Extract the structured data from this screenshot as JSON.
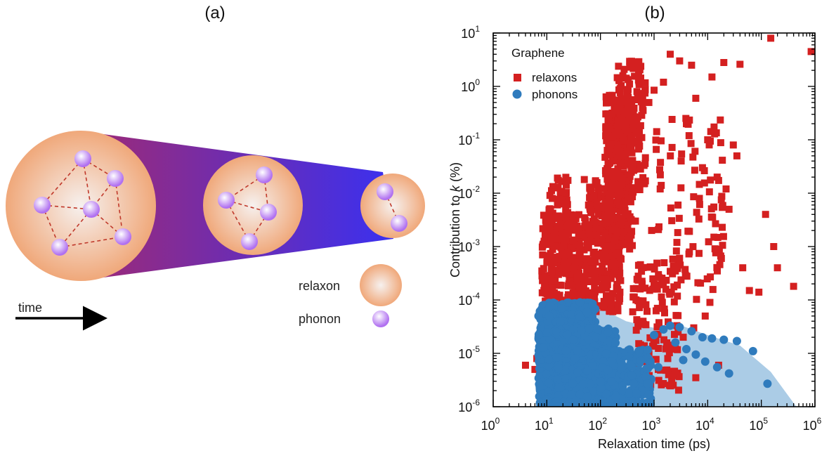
{
  "panels": {
    "a": {
      "label": "(a)"
    },
    "b": {
      "label": "(b)"
    }
  },
  "diagram": {
    "legend": {
      "relaxon_label": "relaxon",
      "phonon_label": "phonon"
    },
    "time_label": "time",
    "colors": {
      "relaxon_outer": "#f0a87a",
      "relaxon_inner": "#f6f1ef",
      "phonon": "#b070f0",
      "link": "#c0392b",
      "cone_left": "#9a2a7a",
      "cone_right": "#3a30f0"
    }
  },
  "chart_data": {
    "type": "scatter",
    "title": "",
    "xlabel": "Relaxation time (ps)",
    "ylabel_main": "Contribution to ",
    "ylabel_var": "k",
    "ylabel_unit": " (%)",
    "xscale": "log",
    "yscale": "log",
    "xlim": [
      1,
      1000000
    ],
    "ylim": [
      1e-06,
      10
    ],
    "x_ticks": [
      {
        "base": "10",
        "exp": "0"
      },
      {
        "base": "10",
        "exp": "1"
      },
      {
        "base": "10",
        "exp": "2"
      },
      {
        "base": "10",
        "exp": "3"
      },
      {
        "base": "10",
        "exp": "4"
      },
      {
        "base": "10",
        "exp": "5"
      },
      {
        "base": "10",
        "exp": "6"
      }
    ],
    "y_ticks": [
      {
        "base": "10",
        "exp": "-6"
      },
      {
        "base": "10",
        "exp": "-5"
      },
      {
        "base": "10",
        "exp": "-4"
      },
      {
        "base": "10",
        "exp": "-3"
      },
      {
        "base": "10",
        "exp": "-2"
      },
      {
        "base": "10",
        "exp": "-1"
      },
      {
        "base": "10",
        "exp": "0"
      },
      {
        "base": "10",
        "exp": "1"
      }
    ],
    "legend_title": "Graphene",
    "legend_position": "top-left",
    "series": [
      {
        "name": "relaxons",
        "marker": "square",
        "color": "#d42020",
        "points": [
          [
            4,
            6e-06
          ],
          [
            6,
            5e-06
          ],
          [
            6.5,
            8e-06
          ],
          [
            150000,
            8
          ],
          [
            850000,
            4.5
          ],
          [
            120000,
            0.004
          ],
          [
            170000,
            0.001
          ],
          [
            200000,
            0.0004
          ],
          [
            400000,
            0.00018
          ],
          [
            90000,
            0.00014
          ],
          [
            3000,
            3
          ],
          [
            5000,
            2.5
          ],
          [
            2000,
            4
          ],
          [
            12000,
            1.5
          ],
          [
            20000,
            2.8
          ],
          [
            40000,
            2.6
          ],
          [
            1000,
            0.85
          ],
          [
            800,
            0.5
          ],
          [
            1500,
            1.2
          ],
          [
            4000,
            0.2
          ],
          [
            6000,
            0.6
          ],
          [
            10000,
            0.1
          ],
          [
            30000,
            0.08
          ],
          [
            35000,
            0.05
          ],
          [
            8000,
            0.03
          ],
          [
            15000,
            0.02
          ],
          [
            7000,
            0.008
          ],
          [
            25000,
            0.005
          ],
          [
            18000,
            0.0006
          ],
          [
            45000,
            0.0004
          ],
          [
            60000,
            0.00015
          ],
          [
            11000,
            9e-05
          ],
          [
            9000,
            5e-05
          ],
          [
            5500,
            3e-05
          ],
          [
            3500,
            2e-05
          ],
          [
            2500,
            1.2e-05
          ],
          [
            1800,
            8e-06
          ],
          [
            700,
            7e-06
          ],
          [
            1200,
            5e-06
          ],
          [
            2200,
            4e-06
          ],
          [
            16000,
            6e-06
          ],
          [
            6000,
            3.5e-06
          ],
          [
            400,
            6e-05
          ],
          [
            600,
            0.0002
          ],
          [
            350,
            0.0009
          ],
          [
            900,
            0.002
          ],
          [
            450,
            0.003
          ],
          [
            2800,
            0.006
          ],
          [
            1300,
            0.012
          ],
          [
            650,
            0.015
          ],
          [
            3200,
            0.04
          ],
          [
            22000,
            0.012
          ],
          [
            50,
            0.018
          ],
          [
            60,
            0.006
          ]
        ],
        "clusters": [
          {
            "x": [
              8,
              60
            ],
            "y": [
              8e-05,
              0.004
            ],
            "n": 260
          },
          {
            "x": [
              10,
              25
            ],
            "y": [
              0.0003,
              0.02
            ],
            "n": 90
          },
          {
            "x": [
              60,
              250
            ],
            "y": [
              6e-05,
              0.02
            ],
            "n": 260
          },
          {
            "x": [
              120,
              400
            ],
            "y": [
              0.001,
              0.7
            ],
            "n": 320
          },
          {
            "x": [
              200,
              700
            ],
            "y": [
              0.01,
              3
            ],
            "n": 150
          },
          {
            "x": [
              400,
              3000
            ],
            "y": [
              2e-06,
              0.0005
            ],
            "n": 120
          },
          {
            "x": [
              1000,
              20000
            ],
            "y": [
              0.0001,
              0.3
            ],
            "n": 90
          }
        ]
      },
      {
        "name": "phonons",
        "marker": "circle",
        "color": "#2f7bbd",
        "points": [
          [
            7,
            5e-05
          ],
          [
            130000,
            2.7e-06
          ],
          [
            70000,
            1.1e-05
          ],
          [
            35000,
            1.7e-05
          ],
          [
            20000,
            1.8e-05
          ],
          [
            12000,
            1.9e-05
          ],
          [
            8000,
            2e-05
          ],
          [
            5000,
            2.6e-05
          ],
          [
            3000,
            3.1e-05
          ],
          [
            2000,
            3.3e-05
          ],
          [
            1500,
            2.8e-05
          ],
          [
            1000,
            2.2e-05
          ],
          [
            4000,
            1.2e-05
          ],
          [
            6000,
            9.5e-06
          ],
          [
            9000,
            7e-06
          ],
          [
            15000,
            5.5e-06
          ],
          [
            25000,
            4.2e-06
          ],
          [
            2500,
            1.6e-05
          ],
          [
            3500,
            7.5e-06
          ],
          [
            1200,
            5.5e-06
          ]
        ],
        "clusters": [
          {
            "x": [
              7,
              80
            ],
            "y": [
              1e-06,
              9e-05
            ],
            "n": 900
          },
          {
            "x": [
              15,
              200
            ],
            "y": [
              1e-06,
              3e-05
            ],
            "n": 500
          },
          {
            "x": [
              100,
              900
            ],
            "y": [
              1e-06,
              1.2e-05
            ],
            "n": 220
          }
        ],
        "band": [
          [
            8,
            9e-05
          ],
          [
            60,
            9e-05
          ],
          [
            300,
            4e-05
          ],
          [
            1000,
            3e-05
          ],
          [
            3000,
            3.4e-05
          ],
          [
            10000,
            2.2e-05
          ],
          [
            40000,
            1.4e-05
          ],
          [
            150000,
            4.5e-06
          ],
          [
            450000,
            1e-06
          ],
          [
            8,
            1e-06
          ]
        ]
      }
    ]
  }
}
